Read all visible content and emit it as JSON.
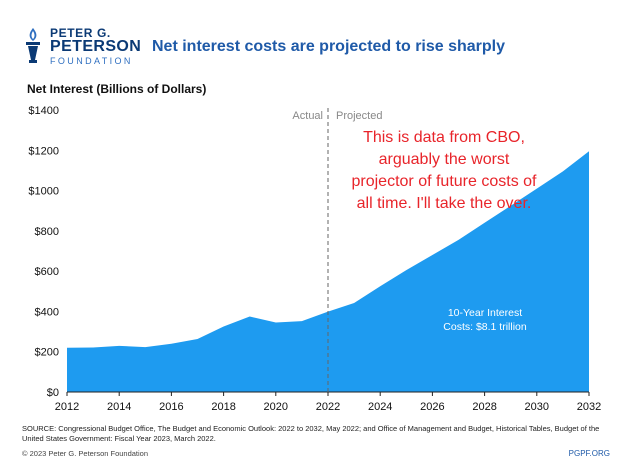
{
  "branding": {
    "org_line1": "PETER G.",
    "org_line2": "PETERSON",
    "org_line3": "FOUNDATION",
    "brand_color": "#0b3a75",
    "logo_icon": "torch-icon"
  },
  "headline": "Net interest costs are projected to rise sharply",
  "source": {
    "text": "SOURCE: Congressional Budget Office, The Budget and Economic Outlook: 2022 to 2032, May 2022; and Office of Management and Budget, Historical Tables, Budget of the United States Government: Fiscal Year 2023, March 2022.",
    "copyright": "© 2023 Peter G. Peterson Foundation",
    "site": "PGPF.ORG"
  },
  "chart_data": {
    "type": "area",
    "title": "Net Interest (Billions of Dollars)",
    "xlabel": "",
    "ylabel": "",
    "x": [
      2012,
      2013,
      2014,
      2015,
      2016,
      2017,
      2018,
      2019,
      2020,
      2021,
      2022,
      2023,
      2024,
      2025,
      2026,
      2027,
      2028,
      2029,
      2030,
      2031,
      2032
    ],
    "values": [
      220,
      221,
      229,
      223,
      240,
      263,
      325,
      375,
      345,
      352,
      399,
      442,
      525,
      605,
      680,
      755,
      840,
      925,
      1010,
      1095,
      1195
    ],
    "xlim": [
      2012,
      2032
    ],
    "ylim": [
      0,
      1400
    ],
    "yticks": [
      0,
      200,
      400,
      600,
      800,
      1000,
      1200,
      1400
    ],
    "ytick_labels": [
      "$0",
      "$200",
      "$400",
      "$600",
      "$800",
      "$1000",
      "$1200",
      "$1400"
    ],
    "xticks": [
      2012,
      2014,
      2016,
      2018,
      2020,
      2022,
      2024,
      2026,
      2028,
      2030,
      2032
    ],
    "xtick_labels": [
      "2012",
      "2014",
      "2016",
      "2018",
      "2020",
      "2022",
      "2024",
      "2026",
      "2028",
      "2030",
      "2032"
    ],
    "divider_x": 2022,
    "divider_labels": {
      "left": "Actual",
      "right": "Projected"
    },
    "area_label_line1": "10-Year Interest",
    "area_label_line2": "Costs: $8.1 trillion",
    "annotation_lines": [
      "This is data from CBO,",
      "arguably the worst",
      "projector of future costs of",
      "all time. I'll take the over."
    ],
    "colors": {
      "area": "#1e9bf0",
      "annotation": "#e8242a",
      "axis": "#222222",
      "area_text": "#ffffff",
      "divider": "#666666"
    },
    "grid": false
  }
}
